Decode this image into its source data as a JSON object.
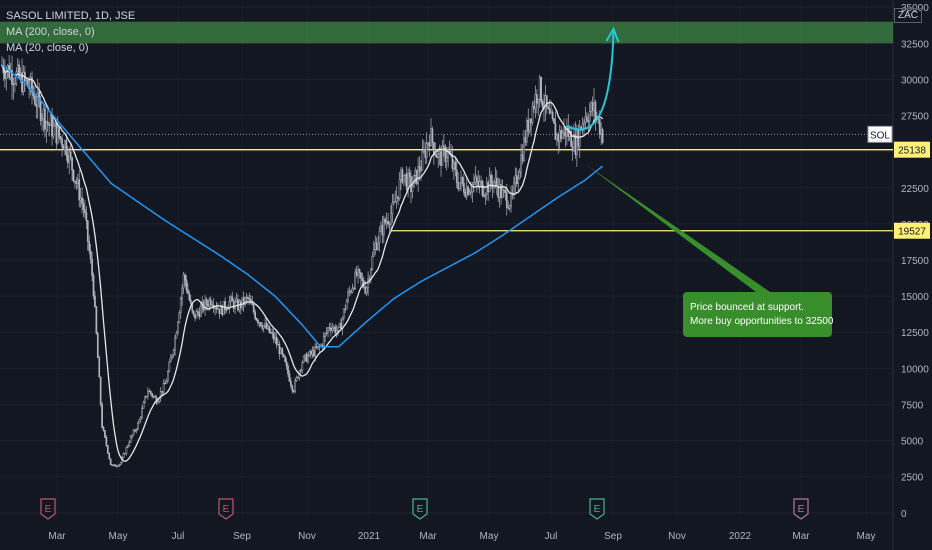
{
  "header": {
    "symbol_line": "SASOL LIMITED, 1D, JSE",
    "ma200_label": "MA (200, close, 0)",
    "ma20_label": "MA (20, close, 0)",
    "currency": "ZAC"
  },
  "colors": {
    "background": "#131722",
    "candles": "#b2b5be",
    "ma200": "#2196f3",
    "ma20": "#e6e6e6",
    "support": "#fff176",
    "target_zone": "#4caf50",
    "projection": "#26c6da",
    "callout": "#388e2b",
    "earnings_red": "#c2566a",
    "earnings_green": "#4caf8c",
    "earnings_gray": "#b07a95"
  },
  "chart_data": {
    "type": "candlestick",
    "ylim": [
      -500,
      35500
    ],
    "y_ticks": [
      0,
      2500,
      5000,
      7500,
      10000,
      12500,
      15000,
      17500,
      20000,
      22500,
      25000,
      27500,
      30000,
      32500,
      35000
    ],
    "x_ticks": [
      "Mar",
      "May",
      "Jul",
      "Sep",
      "Nov",
      "2021",
      "Mar",
      "May",
      "Jul",
      "Sep",
      "Nov",
      "2022",
      "Mar",
      "May"
    ],
    "close_path_key": [
      [
        0,
        31000
      ],
      [
        3,
        29500
      ],
      [
        5,
        27000
      ],
      [
        7,
        25500
      ],
      [
        9,
        21000
      ],
      [
        10,
        16000
      ],
      [
        11,
        6000
      ],
      [
        12,
        3200
      ],
      [
        13,
        3400
      ],
      [
        14,
        5000
      ],
      [
        15,
        6200
      ],
      [
        16,
        8500
      ],
      [
        17,
        7800
      ],
      [
        18,
        9000
      ],
      [
        19,
        12000
      ],
      [
        20,
        16500
      ],
      [
        21,
        13500
      ],
      [
        22,
        14200
      ],
      [
        23,
        14800
      ],
      [
        24,
        14000
      ],
      [
        25,
        14600
      ],
      [
        26,
        14300
      ],
      [
        27,
        14800
      ],
      [
        28,
        13500
      ],
      [
        29,
        12800
      ],
      [
        30,
        12000
      ],
      [
        31,
        10500
      ],
      [
        32,
        8500
      ],
      [
        33,
        10500
      ],
      [
        34,
        11000
      ],
      [
        35,
        11500
      ],
      [
        36,
        13000
      ],
      [
        37,
        12500
      ],
      [
        38,
        15000
      ],
      [
        39,
        16500
      ],
      [
        40,
        15500
      ],
      [
        41,
        18500
      ],
      [
        42,
        20000
      ],
      [
        43,
        21000
      ],
      [
        44,
        23500
      ],
      [
        45,
        22500
      ],
      [
        46,
        24000
      ],
      [
        47,
        26200
      ],
      [
        48,
        24500
      ],
      [
        49,
        25000
      ],
      [
        50,
        23000
      ],
      [
        51,
        22500
      ],
      [
        52,
        22800
      ],
      [
        53,
        22500
      ],
      [
        54,
        23000
      ],
      [
        55,
        22000
      ],
      [
        56,
        21500
      ],
      [
        57,
        24500
      ],
      [
        58,
        27500
      ],
      [
        59,
        29500
      ],
      [
        60,
        27500
      ],
      [
        61,
        26000
      ],
      [
        62,
        26500
      ],
      [
        63,
        25500
      ],
      [
        64,
        27500
      ],
      [
        65,
        28000
      ],
      [
        66,
        26200
      ]
    ],
    "ma200_key": [
      [
        0,
        31000
      ],
      [
        3,
        29500
      ],
      [
        6,
        27200
      ],
      [
        9,
        25000
      ],
      [
        12,
        22800
      ],
      [
        15,
        21500
      ],
      [
        18,
        20200
      ],
      [
        21,
        19000
      ],
      [
        24,
        17800
      ],
      [
        27,
        16500
      ],
      [
        30,
        15000
      ],
      [
        33,
        13000
      ],
      [
        35,
        11500
      ],
      [
        37,
        11500
      ],
      [
        40,
        13200
      ],
      [
        43,
        14800
      ],
      [
        46,
        16000
      ],
      [
        49,
        17000
      ],
      [
        52,
        18000
      ],
      [
        55,
        19200
      ],
      [
        58,
        20500
      ],
      [
        61,
        21800
      ],
      [
        64,
        23000
      ],
      [
        66,
        24000
      ]
    ],
    "support_levels": [
      25138,
      19527
    ],
    "resistance_label": "SOL",
    "resistance_value": 26200,
    "target_zone": [
      32500,
      34000
    ],
    "projection_end": 33500,
    "earnings_markers": [
      "E",
      "E",
      "E",
      "E",
      "E"
    ],
    "annotation": {
      "line1": "Price bounced at support.",
      "line2": "More buy opportunities to 32500"
    }
  }
}
